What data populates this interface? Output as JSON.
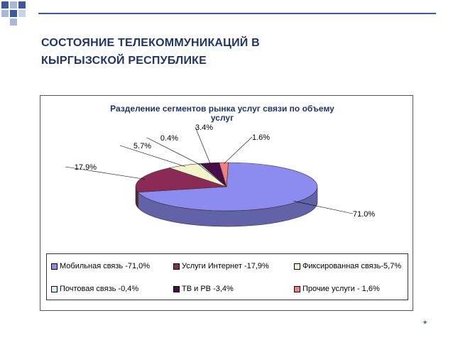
{
  "slide": {
    "title_line1": "СОСТОЯНИЕ ТЕЛЕКОММУНИКАЦИЙ В",
    "title_line2": "КЫРГЫЗСКОЙ РЕСПУБЛИКЕ",
    "footer_mark": "*"
  },
  "colors": {
    "title": "#1f3563",
    "decoration": "#3a5a9c"
  },
  "chart_data": {
    "type": "pie",
    "title": "Разделение сегментов рынка услуг связи  по объему услуг",
    "slices": [
      {
        "name": "Мобильная связь -71,0%",
        "value": 71.0,
        "label": "71.0%",
        "color": "#8c8cf0"
      },
      {
        "name": "Услуги Интернет -17,9%",
        "value": 17.9,
        "label": "17.9%",
        "color": "#8a2a55"
      },
      {
        "name": "Фиксированная связь-5,7%",
        "value": 5.7,
        "label": "5.7%",
        "color": "#f4f4cc"
      },
      {
        "name": "Почтовая связь -0,4%",
        "value": 0.4,
        "label": "0.4%",
        "color": "#d6eef4"
      },
      {
        "name": "ТВ и РВ -3,4%",
        "value": 3.4,
        "label": "3.4%",
        "color": "#4a0c48"
      },
      {
        "name": "Прочие услуги - 1,6%",
        "value": 1.6,
        "label": "1.6%",
        "color": "#f08080"
      }
    ],
    "legend_position": "bottom"
  }
}
